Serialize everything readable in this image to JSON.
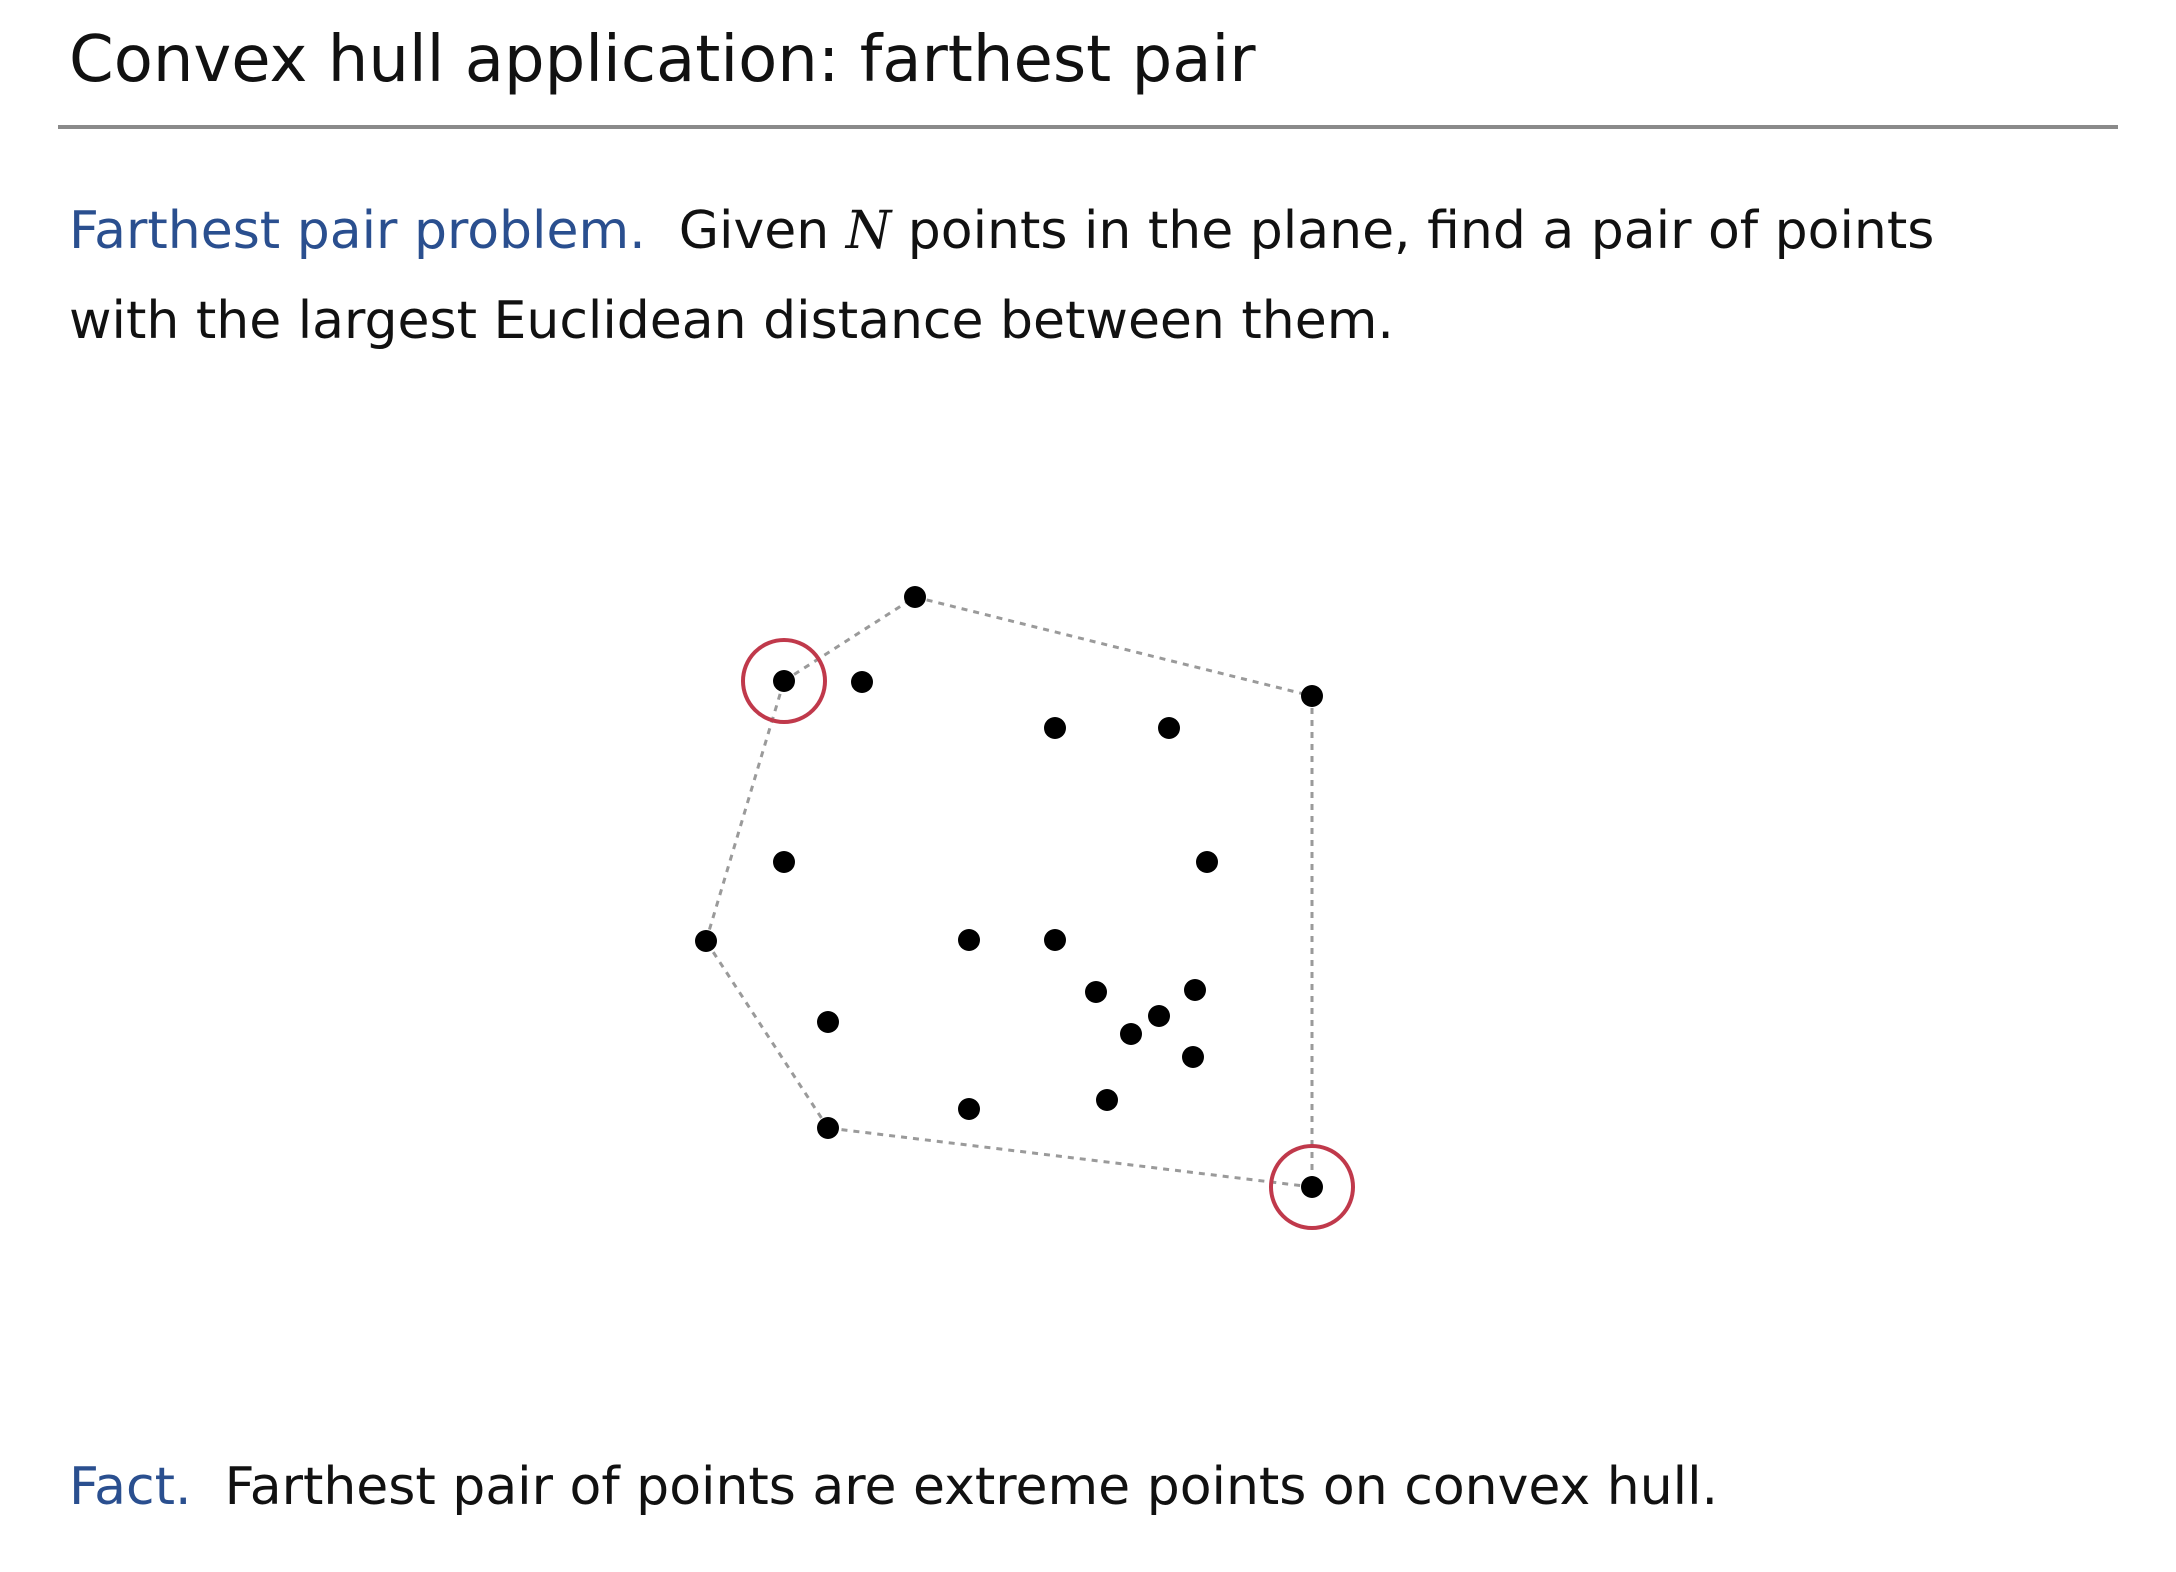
{
  "title": "Convex hull application:  farthest pair",
  "definition": {
    "term": "Farthest pair problem.",
    "line1_before": "Given",
    "variable": "N",
    "line1_after": "points in the plane, find a pair of points",
    "line2": "with the largest Euclidean distance between them."
  },
  "fact": {
    "term": "Fact.",
    "text": "Farthest pair of points are extreme points on convex hull."
  },
  "colors": {
    "term": "#2a4f8f",
    "highlight_circle": "#c0394b",
    "hull_edge": "#9a9a9a",
    "point": "#000000"
  }
}
